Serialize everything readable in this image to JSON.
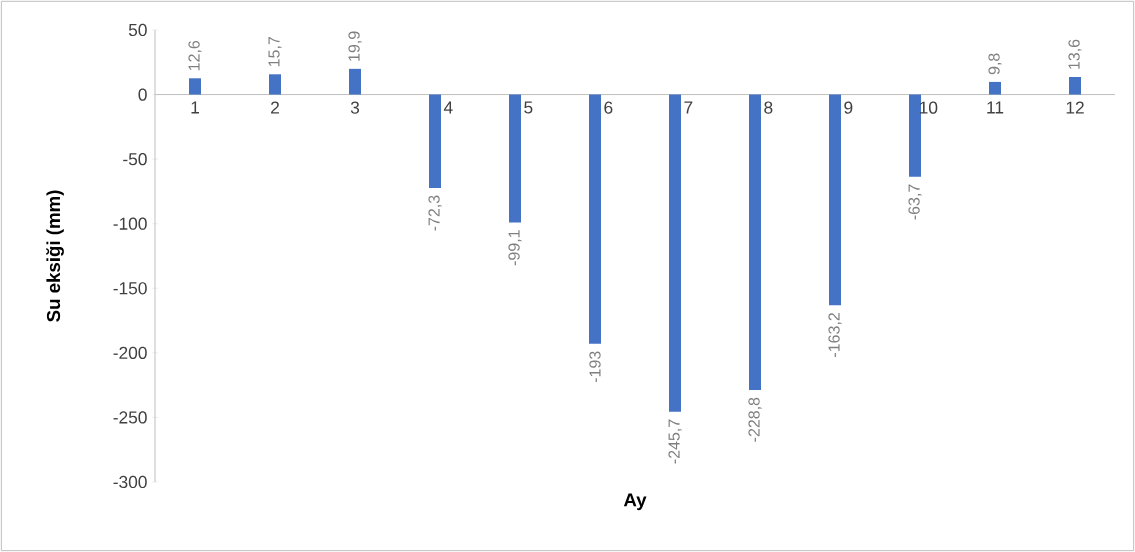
{
  "chart_data": {
    "type": "bar",
    "xlabel": "Ay",
    "ylabel": "Su eksiği (mm)",
    "categories": [
      "1",
      "2",
      "3",
      "4",
      "5",
      "6",
      "7",
      "8",
      "9",
      "10",
      "11",
      "12"
    ],
    "values": [
      12.6,
      15.7,
      19.9,
      -72.3,
      -99.1,
      -193,
      -245.7,
      -228.8,
      -163.2,
      -63.7,
      9.8,
      13.6
    ],
    "value_labels": [
      "12,6",
      "15,7",
      "19,9",
      "-72,3",
      "-99,1",
      "-193",
      "-245,7",
      "-228,8",
      "-163,2",
      "-63,7",
      "9,8",
      "13,6"
    ],
    "color": "#4472c4",
    "ylim": [
      -300,
      50
    ],
    "yticks": [
      -300,
      -250,
      -200,
      -150,
      -100,
      -50,
      0,
      50
    ]
  }
}
